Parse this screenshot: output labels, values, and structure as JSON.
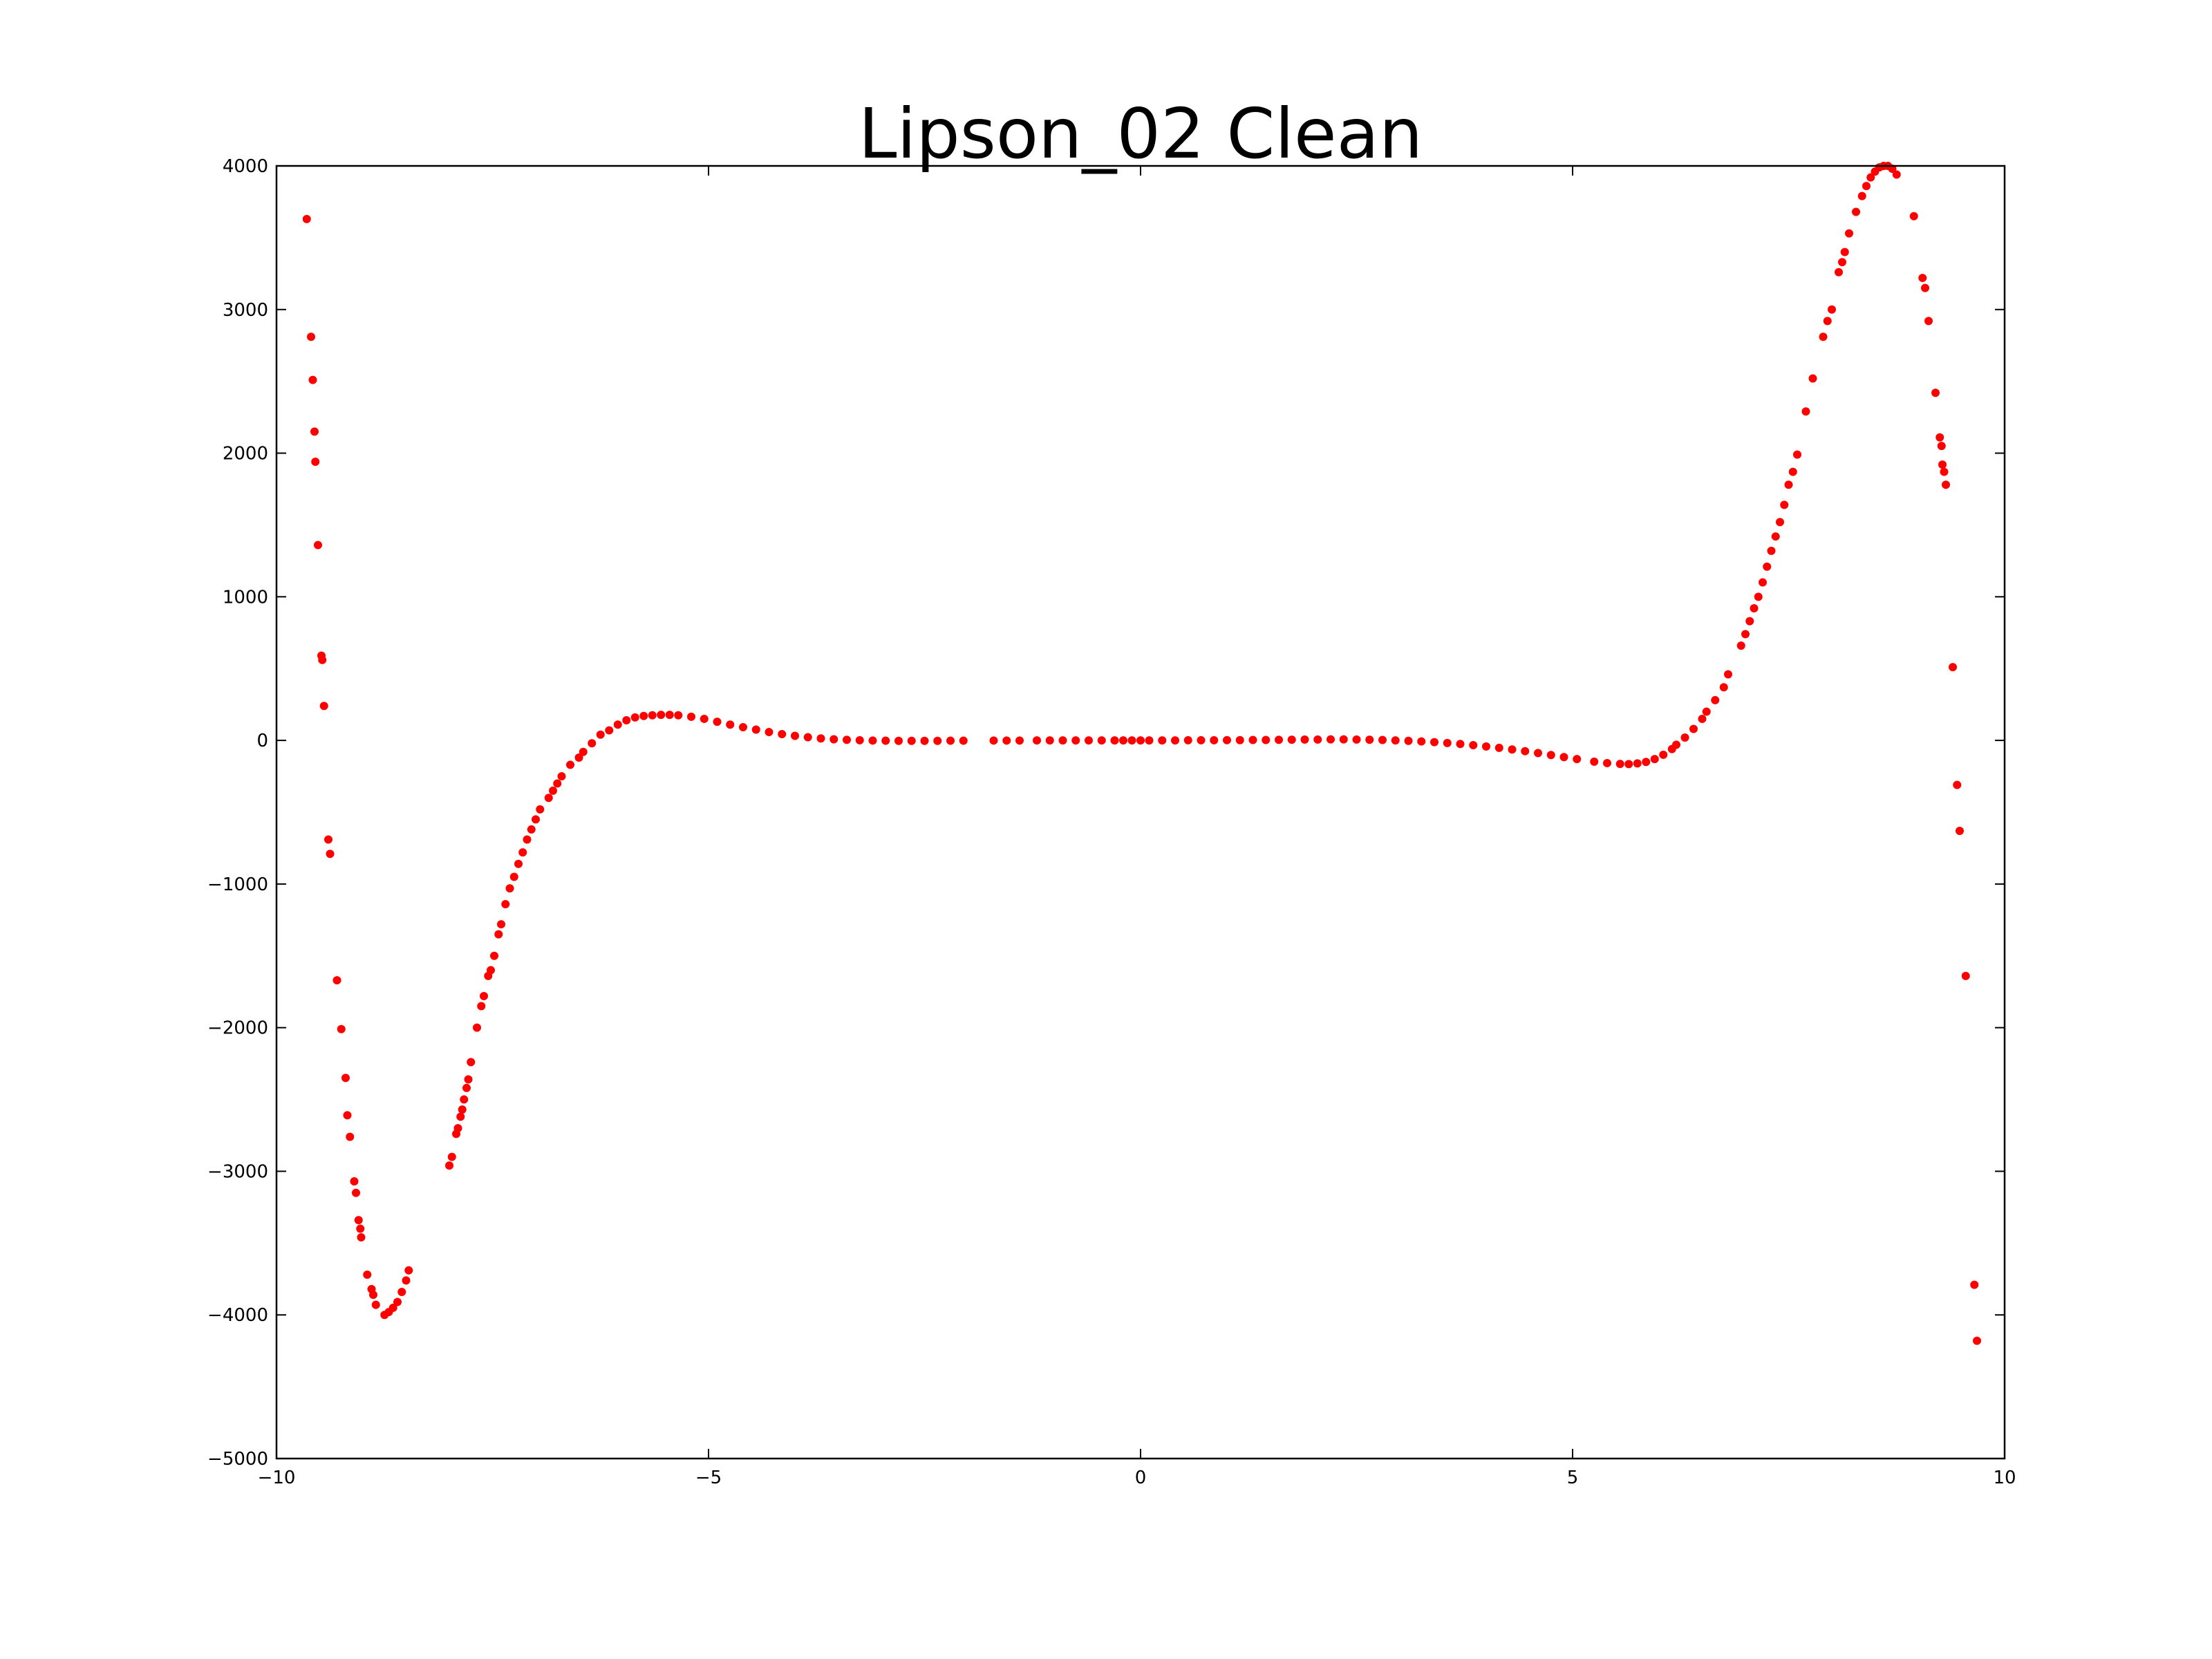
{
  "chart_data": {
    "type": "scatter",
    "title": "Lipson_02 Clean",
    "xlabel": "",
    "ylabel": "",
    "xlim": [
      -10,
      10
    ],
    "ylim": [
      -5000,
      4000
    ],
    "x_ticks": [
      -10,
      -5,
      0,
      5,
      10
    ],
    "x_tick_labels": [
      "−10",
      "−5",
      "0",
      "5",
      "10"
    ],
    "y_ticks": [
      -5000,
      -4000,
      -3000,
      -2000,
      -1000,
      0,
      1000,
      2000,
      3000,
      4000
    ],
    "y_tick_labels": [
      "−5000",
      "−4000",
      "−3000",
      "−2000",
      "−1000",
      "0",
      "1000",
      "2000",
      "3000",
      "4000"
    ],
    "grid": false,
    "legend": "none",
    "series": [
      {
        "color": "#ff0000",
        "points": [
          [
            -9.65,
            3630
          ],
          [
            -9.6,
            2810
          ],
          [
            -9.58,
            2510
          ],
          [
            -9.56,
            2150
          ],
          [
            -9.55,
            1940
          ],
          [
            -9.52,
            1360
          ],
          [
            -9.48,
            590
          ],
          [
            -9.47,
            560
          ],
          [
            -9.45,
            240
          ],
          [
            -9.4,
            -690
          ],
          [
            -9.38,
            -790
          ],
          [
            -9.3,
            -1670
          ],
          [
            -9.25,
            -2010
          ],
          [
            -9.2,
            -2350
          ],
          [
            -9.18,
            -2610
          ],
          [
            -9.15,
            -2760
          ],
          [
            -9.1,
            -3070
          ],
          [
            -9.08,
            -3150
          ],
          [
            -9.05,
            -3340
          ],
          [
            -9.03,
            -3400
          ],
          [
            -9.02,
            -3460
          ],
          [
            -8.95,
            -3720
          ],
          [
            -8.9,
            -3820
          ],
          [
            -8.88,
            -3860
          ],
          [
            -8.85,
            -3930
          ],
          [
            -8.75,
            -4000
          ],
          [
            -8.7,
            -3980
          ],
          [
            -8.65,
            -3950
          ],
          [
            -8.6,
            -3910
          ],
          [
            -8.55,
            -3840
          ],
          [
            -8.5,
            -3760
          ],
          [
            -8.47,
            -3690
          ],
          [
            -8.0,
            -2960
          ],
          [
            -7.97,
            -2900
          ],
          [
            -7.92,
            -2740
          ],
          [
            -7.9,
            -2700
          ],
          [
            -7.87,
            -2620
          ],
          [
            -7.85,
            -2570
          ],
          [
            -7.83,
            -2500
          ],
          [
            -7.8,
            -2420
          ],
          [
            -7.78,
            -2360
          ],
          [
            -7.75,
            -2240
          ],
          [
            -7.68,
            -2000
          ],
          [
            -7.63,
            -1850
          ],
          [
            -7.6,
            -1780
          ],
          [
            -7.55,
            -1640
          ],
          [
            -7.52,
            -1600
          ],
          [
            -7.48,
            -1500
          ],
          [
            -7.43,
            -1350
          ],
          [
            -7.4,
            -1280
          ],
          [
            -7.35,
            -1140
          ],
          [
            -7.3,
            -1030
          ],
          [
            -7.25,
            -950
          ],
          [
            -7.2,
            -860
          ],
          [
            -7.15,
            -780
          ],
          [
            -7.1,
            -690
          ],
          [
            -7.05,
            -620
          ],
          [
            -7.0,
            -550
          ],
          [
            -6.95,
            -480
          ],
          [
            -6.85,
            -400
          ],
          [
            -6.8,
            -350
          ],
          [
            -6.75,
            -300
          ],
          [
            -6.7,
            -250
          ],
          [
            -6.6,
            -170
          ],
          [
            -6.5,
            -120
          ],
          [
            -6.45,
            -80
          ],
          [
            -6.35,
            -20
          ],
          [
            -6.25,
            40
          ],
          [
            -6.15,
            70
          ],
          [
            -6.05,
            110
          ],
          [
            -5.95,
            140
          ],
          [
            -5.85,
            160
          ],
          [
            -5.75,
            170
          ],
          [
            -5.65,
            175
          ],
          [
            -5.55,
            178
          ],
          [
            -5.45,
            178
          ],
          [
            -5.35,
            175
          ],
          [
            -5.2,
            165
          ],
          [
            -5.05,
            150
          ],
          [
            -4.9,
            130
          ],
          [
            -4.75,
            110
          ],
          [
            -4.6,
            92
          ],
          [
            -4.45,
            75
          ],
          [
            -4.3,
            58
          ],
          [
            -4.15,
            44
          ],
          [
            -4.0,
            32
          ],
          [
            -3.85,
            22
          ],
          [
            -3.7,
            14
          ],
          [
            -3.55,
            8
          ],
          [
            -3.4,
            4
          ],
          [
            -3.25,
            1
          ],
          [
            -3.1,
            -1
          ],
          [
            -2.95,
            -2
          ],
          [
            -2.8,
            -3
          ],
          [
            -2.65,
            -3
          ],
          [
            -2.5,
            -3
          ],
          [
            -2.35,
            -3
          ],
          [
            -2.2,
            -2
          ],
          [
            -2.05,
            -2
          ],
          [
            -1.7,
            -1
          ],
          [
            -1.55,
            -1
          ],
          [
            -1.4,
            -1
          ],
          [
            -1.2,
            0
          ],
          [
            -1.05,
            0
          ],
          [
            -0.9,
            0
          ],
          [
            -0.75,
            0
          ],
          [
            -0.6,
            0
          ],
          [
            -0.45,
            0
          ],
          [
            -0.3,
            0
          ],
          [
            -0.2,
            0
          ],
          [
            -0.1,
            0
          ],
          [
            0.0,
            0
          ],
          [
            0.1,
            0
          ],
          [
            0.25,
            0
          ],
          [
            0.4,
            0
          ],
          [
            0.55,
            1
          ],
          [
            0.7,
            1
          ],
          [
            0.85,
            1
          ],
          [
            1.0,
            2
          ],
          [
            1.15,
            2
          ],
          [
            1.3,
            3
          ],
          [
            1.45,
            3
          ],
          [
            1.6,
            4
          ],
          [
            1.75,
            5
          ],
          [
            1.9,
            6
          ],
          [
            2.05,
            6
          ],
          [
            2.2,
            7
          ],
          [
            2.35,
            7
          ],
          [
            2.5,
            6
          ],
          [
            2.65,
            5
          ],
          [
            2.8,
            3
          ],
          [
            2.95,
            0
          ],
          [
            3.1,
            -3
          ],
          [
            3.25,
            -7
          ],
          [
            3.4,
            -12
          ],
          [
            3.55,
            -18
          ],
          [
            3.7,
            -25
          ],
          [
            3.85,
            -33
          ],
          [
            4.0,
            -42
          ],
          [
            4.15,
            -52
          ],
          [
            4.3,
            -63
          ],
          [
            4.45,
            -75
          ],
          [
            4.6,
            -88
          ],
          [
            4.75,
            -102
          ],
          [
            4.9,
            -116
          ],
          [
            5.05,
            -130
          ],
          [
            5.25,
            -148
          ],
          [
            5.4,
            -158
          ],
          [
            5.55,
            -164
          ],
          [
            5.65,
            -165
          ],
          [
            5.75,
            -160
          ],
          [
            5.85,
            -150
          ],
          [
            5.95,
            -130
          ],
          [
            6.05,
            -100
          ],
          [
            6.15,
            -60
          ],
          [
            6.2,
            -30
          ],
          [
            6.3,
            20
          ],
          [
            6.4,
            80
          ],
          [
            6.5,
            150
          ],
          [
            6.55,
            200
          ],
          [
            6.65,
            280
          ],
          [
            6.75,
            370
          ],
          [
            6.8,
            460
          ],
          [
            6.95,
            660
          ],
          [
            7.0,
            740
          ],
          [
            7.05,
            830
          ],
          [
            7.1,
            920
          ],
          [
            7.15,
            1000
          ],
          [
            7.2,
            1100
          ],
          [
            7.25,
            1210
          ],
          [
            7.3,
            1320
          ],
          [
            7.35,
            1420
          ],
          [
            7.4,
            1520
          ],
          [
            7.45,
            1640
          ],
          [
            7.5,
            1780
          ],
          [
            7.55,
            1870
          ],
          [
            7.6,
            1990
          ],
          [
            7.7,
            2290
          ],
          [
            7.78,
            2520
          ],
          [
            7.9,
            2810
          ],
          [
            7.95,
            2920
          ],
          [
            8.0,
            3000
          ],
          [
            8.08,
            3260
          ],
          [
            8.12,
            3330
          ],
          [
            8.15,
            3400
          ],
          [
            8.2,
            3530
          ],
          [
            8.28,
            3680
          ],
          [
            8.35,
            3790
          ],
          [
            8.4,
            3860
          ],
          [
            8.45,
            3920
          ],
          [
            8.5,
            3960
          ],
          [
            8.55,
            3990
          ],
          [
            8.6,
            4000
          ],
          [
            8.65,
            4000
          ],
          [
            8.7,
            3980
          ],
          [
            8.75,
            3940
          ],
          [
            8.95,
            3650
          ],
          [
            9.05,
            3220
          ],
          [
            9.08,
            3150
          ],
          [
            9.12,
            2920
          ],
          [
            9.2,
            2420
          ],
          [
            9.25,
            2110
          ],
          [
            9.27,
            2050
          ],
          [
            9.28,
            1920
          ],
          [
            9.3,
            1870
          ],
          [
            9.32,
            1780
          ],
          [
            9.4,
            510
          ],
          [
            9.45,
            -310
          ],
          [
            9.48,
            -630
          ],
          [
            9.55,
            -1640
          ],
          [
            9.65,
            -3790
          ],
          [
            9.68,
            -4180
          ]
        ]
      }
    ]
  }
}
